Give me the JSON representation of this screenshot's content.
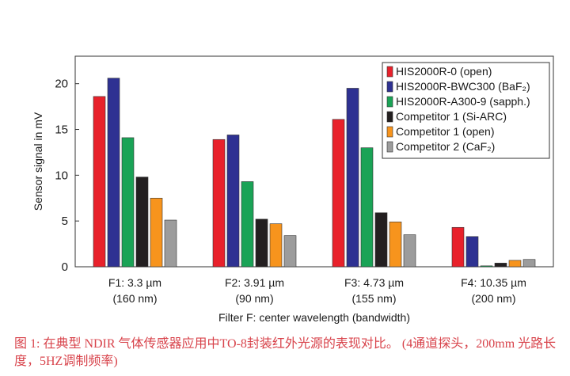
{
  "chart_data": {
    "type": "bar",
    "xlabel": "Filter F: center wavelength (bandwidth)",
    "ylabel": "Sensor signal in mV",
    "ylim": [
      0,
      23
    ],
    "yticks": [
      0,
      5,
      10,
      15,
      20
    ],
    "grid": false,
    "legend_position": "top-right",
    "categories": [
      {
        "line1": "F1:  3.3 µm",
        "line2": "(160 nm)"
      },
      {
        "line1": "F2:  3.91 µm",
        "line2": "(90 nm)"
      },
      {
        "line1": "F3:  4.73 µm",
        "line2": "(155 nm)"
      },
      {
        "line1": "F4:  10.35 µm",
        "line2": "(200 nm)"
      }
    ],
    "series": [
      {
        "name": "HIS2000R-0 (open)",
        "color": "#e8212b",
        "values": [
          18.6,
          13.9,
          16.1,
          4.3
        ]
      },
      {
        "name": "HIS2000R-BWC300 (BaF₂)",
        "color": "#2e3192",
        "values": [
          20.6,
          14.4,
          19.5,
          3.3
        ]
      },
      {
        "name": "HIS2000R-A300-9 (sapph.)",
        "color": "#1aa356",
        "values": [
          14.1,
          9.3,
          13.0,
          0.1
        ]
      },
      {
        "name": "Competitor 1 (Si-ARC)",
        "color": "#231f20",
        "values": [
          9.8,
          5.2,
          5.9,
          0.4
        ]
      },
      {
        "name": "Competitor 1 (open)",
        "color": "#f7941d",
        "values": [
          7.5,
          4.7,
          4.9,
          0.7
        ]
      },
      {
        "name": "Competitor 2 (CaF₂)",
        "color": "#9c9c9c",
        "values": [
          5.1,
          3.4,
          3.5,
          0.8
        ]
      }
    ]
  },
  "caption": {
    "text": "图 1: 在典型 NDIR 气体传感器应用中TO-8封装红外光源的表现对比。 (4通道探头，200mm 光路长度，5HZ调制频率)"
  }
}
